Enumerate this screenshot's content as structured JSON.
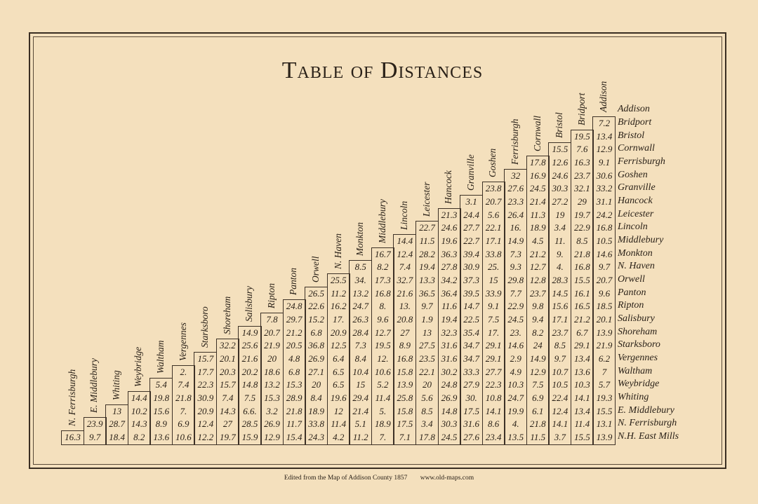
{
  "title": "Table of Distances",
  "rows": [
    "Addison",
    "Bridport",
    "Bristol",
    "Cornwall",
    "Ferrisburgh",
    "Goshen",
    "Granville",
    "Hancock",
    "Leicester",
    "Lincoln",
    "Middlebury",
    "Monkton",
    "N. Haven",
    "Orwell",
    "Panton",
    "Ripton",
    "Salisbury",
    "Shoreham",
    "Starksboro",
    "Vergennes",
    "Waltham",
    "Weybridge",
    "Whiting",
    "E. Middlebury",
    "N. Ferrisburgh",
    "N.H. East Mills"
  ],
  "columns": [
    {
      "header": "Addison",
      "values": [
        "7.2",
        "13.4",
        "12.9",
        "9.1",
        "30.6",
        "33.2",
        "31.1",
        "24.2",
        "16.8",
        "10.5",
        "14.6",
        "9.7",
        "20.7",
        "9.6",
        "18.5",
        "20.1",
        "13.9",
        "21.9",
        "6.2",
        "7",
        "5.7",
        "19.3",
        "15.5",
        "13.1",
        "13.9"
      ]
    },
    {
      "header": "Bridport",
      "values": [
        "19.5",
        "7.6",
        "16.3",
        "23.7",
        "32.1",
        "29",
        "19.7",
        "22.9",
        "8.5",
        "21.8",
        "16.8",
        "15.5",
        "16.1",
        "16.5",
        "21.2",
        "6.7",
        "29.1",
        "13.4",
        "13.6",
        "10.3",
        "14.1",
        "13.4",
        "11.4",
        "15.5"
      ]
    },
    {
      "header": "Bristol",
      "values": [
        "15.5",
        "12.6",
        "24.6",
        "30.3",
        "27.2",
        "19",
        "3.4",
        "11.",
        "9.",
        "4.",
        "28.3",
        "14.5",
        "15.6",
        "17.1",
        "23.7",
        "8.5",
        "9.7",
        "10.7",
        "10.5",
        "22.4",
        "12.4",
        "14.1",
        "3.7"
      ]
    },
    {
      "header": "Cornwall",
      "values": [
        "17.8",
        "16.9",
        "24.5",
        "21.4",
        "11.3",
        "18.9",
        "4.5",
        "21.2",
        "12.7",
        "12.8",
        "23.7",
        "9.8",
        "9.4",
        "8.2",
        "24",
        "14.9",
        "12.9",
        "7.5",
        "6.9",
        "6.1",
        "21.8",
        "11.5"
      ]
    },
    {
      "header": "Ferrisburgh",
      "values": [
        "32",
        "27.6",
        "23.3",
        "26.4",
        "16.",
        "14.9",
        "7.3",
        "9.3",
        "29.8",
        "7.7",
        "22.9",
        "24.5",
        "23.",
        "14.6",
        "2.9",
        "4.9",
        "10.3",
        "24.7",
        "19.9",
        "4.",
        "13.5"
      ]
    },
    {
      "header": "Goshen",
      "values": [
        "23.8",
        "20.7",
        "5.6",
        "22.1",
        "17.1",
        "33.8",
        "25.",
        "15",
        "33.9",
        "9.1",
        "7.5",
        "17.",
        "29.1",
        "29.1",
        "27.7",
        "22.3",
        "10.8",
        "14.1",
        "8.6",
        "23.4"
      ]
    },
    {
      "header": "Granville",
      "values": [
        "3.1",
        "24.4",
        "27.7",
        "22.7",
        "39.4",
        "30.9",
        "37.3",
        "39.5",
        "14.7",
        "22.5",
        "35.4",
        "34.7",
        "34.7",
        "33.3",
        "27.9",
        "30.",
        "17.5",
        "31.6",
        "27.6"
      ]
    },
    {
      "header": "Hancock",
      "values": [
        "21.3",
        "24.6",
        "19.6",
        "36.3",
        "27.8",
        "34.2",
        "36.4",
        "11.6",
        "19.4",
        "32.3",
        "31.6",
        "31.6",
        "30.2",
        "24.8",
        "26.9",
        "14.8",
        "30.3",
        "24.5"
      ]
    },
    {
      "header": "Leicester",
      "values": [
        "22.7",
        "11.5",
        "28.2",
        "19.4",
        "13.3",
        "36.5",
        "9.7",
        "1.9",
        "13",
        "27.5",
        "23.5",
        "22.1",
        "20",
        "5.6",
        "8.5",
        "3.4",
        "17.8"
      ]
    },
    {
      "header": "Lincoln",
      "values": [
        "14.4",
        "12.4",
        "7.4",
        "32.7",
        "21.6",
        "13.",
        "20.8",
        "27",
        "8.9",
        "16.8",
        "15.8",
        "13.9",
        "25.8",
        "15.8",
        "17.5",
        "7.1"
      ]
    },
    {
      "header": "Middlebury",
      "values": [
        "16.7",
        "8.2",
        "17.3",
        "16.8",
        "8.",
        "9.6",
        "12.7",
        "19.5",
        "12.",
        "10.6",
        "5.2",
        "11.4",
        "5.",
        "18.9",
        "7."
      ]
    },
    {
      "header": "Monkton",
      "values": [
        "8.5",
        "34.",
        "13.2",
        "24.7",
        "26.3",
        "28.4",
        "7.3",
        "8.4",
        "10.4",
        "15",
        "29.4",
        "21.4",
        "5.1",
        "11.2"
      ]
    },
    {
      "header": "N. Haven",
      "values": [
        "25.5",
        "11.2",
        "16.2",
        "17.",
        "20.9",
        "12.5",
        "6.4",
        "6.5",
        "6.5",
        "19.6",
        "12",
        "11.4",
        "4.2"
      ]
    },
    {
      "header": "Orwell",
      "values": [
        "26.5",
        "22.6",
        "15.2",
        "6.8",
        "36.8",
        "26.9",
        "27.1",
        "20",
        "8.4",
        "18.9",
        "33.8",
        "24.3"
      ]
    },
    {
      "header": "Panton",
      "values": [
        "24.8",
        "29.7",
        "21.2",
        "20.5",
        "4.8",
        "6.8",
        "15.3",
        "28.9",
        "21.8",
        "11.7",
        "15.4"
      ]
    },
    {
      "header": "Ripton",
      "values": [
        "7.8",
        "20.7",
        "21.9",
        "20",
        "18.6",
        "13.2",
        "15.3",
        "3.2",
        "26.9",
        "12.9"
      ]
    },
    {
      "header": "Salisbury",
      "values": [
        "14.9",
        "25.6",
        "21.6",
        "20.2",
        "14.8",
        "7.5",
        "6.6.",
        "28.5",
        "15.9"
      ]
    },
    {
      "header": "Shoreham",
      "values": [
        "32.2",
        "20.1",
        "20.3",
        "15.7",
        "7.4",
        "14.3",
        "27",
        "19.7"
      ]
    },
    {
      "header": "Starksboro",
      "values": [
        "15.7",
        "17.7",
        "22.3",
        "30.9",
        "20.9",
        "12.4",
        "12.2"
      ]
    },
    {
      "header": "Vergennes",
      "values": [
        "2.",
        "7.4",
        "21.8",
        "7.",
        "6.9",
        "10.6"
      ]
    },
    {
      "header": "Waltham",
      "values": [
        "5.4",
        "19.8",
        "15.6",
        "8.9",
        "13.6"
      ]
    },
    {
      "header": "Weybridge",
      "values": [
        "14.4",
        "10.2",
        "14.3",
        "8.2"
      ]
    },
    {
      "header": "Whiting",
      "values": [
        "13",
        "28.7",
        "18.4"
      ]
    },
    {
      "header": "E. Middlebury",
      "values": [
        "23.9",
        "9.7"
      ]
    },
    {
      "header": "N. Ferrisburgh",
      "values": [
        "16.3"
      ]
    }
  ],
  "footer": {
    "source": "Edited from the Map of Addison County 1857",
    "website": "www.old-maps.com"
  },
  "colors": {
    "paper": "#f4e0bd",
    "ink": "#2a2118"
  }
}
